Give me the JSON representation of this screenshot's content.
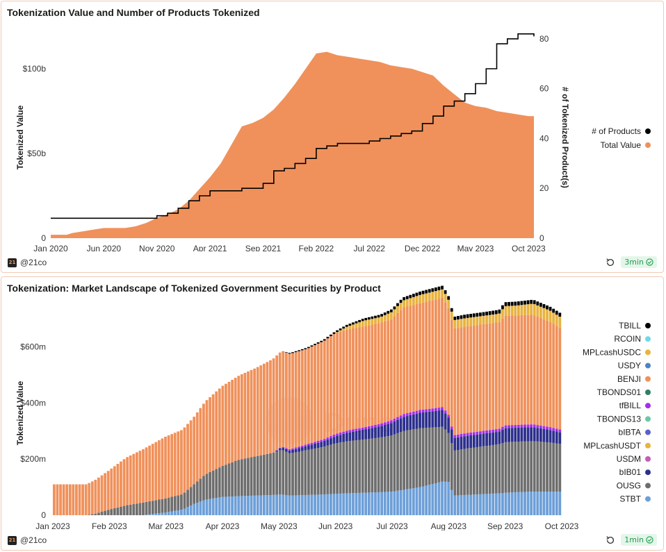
{
  "footer": {
    "author": "@21co",
    "logo_text": "21"
  },
  "panels": [
    {
      "title": "Tokenization Value and Number of Products Tokenized",
      "refresh_badge": "3min"
    },
    {
      "title": "Tokenization: Market Landscape of Tokenized Government Securities by Product",
      "refresh_badge": "1min"
    }
  ],
  "chart_data": [
    {
      "type": "area",
      "title": "Tokenization Value and Number of Products Tokenized",
      "xlabel": "",
      "ylabel": "Tokenized Value",
      "y2label": "# of Tokenized Product(s)",
      "xlim": [
        0,
        45.5
      ],
      "ylim": [
        0,
        125
      ],
      "y2lim": [
        0,
        85
      ],
      "x_ticks": [
        {
          "v": 0,
          "label": "Jan 2020"
        },
        {
          "v": 5,
          "label": "Jun 2020"
        },
        {
          "v": 10,
          "label": "Nov 2020"
        },
        {
          "v": 15,
          "label": "Apr 2021"
        },
        {
          "v": 20,
          "label": "Sep 2021"
        },
        {
          "v": 25,
          "label": "Feb 2022"
        },
        {
          "v": 30,
          "label": "Jul 2022"
        },
        {
          "v": 35,
          "label": "Dec 2022"
        },
        {
          "v": 40,
          "label": "May 2023"
        },
        {
          "v": 45,
          "label": "Oct 2023"
        }
      ],
      "y_ticks": [
        {
          "v": 0,
          "label": "0"
        },
        {
          "v": 50,
          "label": "$50b"
        },
        {
          "v": 100,
          "label": "$100b"
        }
      ],
      "y2_ticks": [
        {
          "v": 0,
          "label": "0"
        },
        {
          "v": 20,
          "label": "20"
        },
        {
          "v": 40,
          "label": "40"
        },
        {
          "v": 60,
          "label": "60"
        },
        {
          "v": 80,
          "label": "80"
        }
      ],
      "legend": [
        {
          "label": "# of Products",
          "color": "#000000"
        },
        {
          "label": "Total Value",
          "color": "#f0915b"
        }
      ],
      "legend_position": "right",
      "series": [
        {
          "name": "Total Value",
          "axis": "left",
          "color": "#f0915b",
          "x": [
            0,
            1,
            1.5,
            2,
            3,
            4,
            5,
            6,
            7,
            8,
            9,
            10,
            11,
            12,
            13,
            14,
            15,
            16,
            17,
            18,
            19,
            20,
            21,
            22,
            23,
            24,
            25,
            26,
            27,
            28,
            29,
            30,
            31,
            32,
            33,
            34,
            35,
            36,
            37,
            38,
            39,
            40,
            41,
            42,
            43,
            44,
            45,
            45.5
          ],
          "values": [
            2,
            2,
            2,
            3,
            4,
            5,
            6,
            6,
            6,
            7,
            9,
            12,
            14,
            17,
            22,
            29,
            36,
            44,
            55,
            66,
            68,
            71,
            76,
            83,
            91,
            100,
            109,
            110,
            108,
            107,
            106,
            105,
            104,
            102,
            101,
            100,
            98,
            96,
            90,
            85,
            80,
            78,
            77,
            75,
            74,
            73,
            72,
            72
          ]
        },
        {
          "name": "# of Products",
          "axis": "right",
          "color": "#000000",
          "x": [
            0,
            9,
            10,
            11,
            12,
            13,
            14,
            15,
            16,
            17,
            18,
            19,
            20,
            21,
            22,
            23,
            24,
            25,
            26,
            27,
            28,
            29,
            30,
            31,
            32,
            33,
            34,
            35,
            36,
            37,
            38,
            39,
            40,
            41,
            42,
            43,
            44,
            45,
            45.5
          ],
          "values": [
            8,
            8,
            9,
            10,
            12,
            15,
            17,
            19,
            19,
            19,
            20,
            20,
            22,
            27,
            28,
            30,
            32,
            36,
            37,
            38,
            38,
            38,
            39,
            40,
            41,
            42,
            43,
            46,
            49,
            53,
            55,
            58,
            62,
            68,
            78,
            80,
            82,
            82,
            81
          ]
        }
      ]
    },
    {
      "type": "bar",
      "stacked": true,
      "title": "Tokenization: Market Landscape of Tokenized Government Securities by Product",
      "xlabel": "",
      "ylabel": "Tokenized Value",
      "xlim": [
        0,
        9
      ],
      "ylim": [
        0,
        720
      ],
      "x_ticks": [
        {
          "v": 0,
          "label": "Jan 2023"
        },
        {
          "v": 1,
          "label": "Feb 2023"
        },
        {
          "v": 2,
          "label": "Mar 2023"
        },
        {
          "v": 3,
          "label": "Apr 2023"
        },
        {
          "v": 4,
          "label": "May 2023"
        },
        {
          "v": 5,
          "label": "Jun 2023"
        },
        {
          "v": 6,
          "label": "Jul 2023"
        },
        {
          "v": 7,
          "label": "Aug 2023"
        },
        {
          "v": 8,
          "label": "Sep 2023"
        },
        {
          "v": 9,
          "label": "Oct 2023"
        }
      ],
      "y_ticks": [
        {
          "v": 0,
          "label": "0"
        },
        {
          "v": 200,
          "label": "$200m"
        },
        {
          "v": 400,
          "label": "$400m"
        },
        {
          "v": 600,
          "label": "$600m"
        }
      ],
      "legend": [
        {
          "label": "TBILL",
          "color": "#000000"
        },
        {
          "label": "RCOIN",
          "color": "#6ddbe6"
        },
        {
          "label": "MPLcashUSDC",
          "color": "#e8b33f"
        },
        {
          "label": "USDY",
          "color": "#4b84c7"
        },
        {
          "label": "BENJI",
          "color": "#f0915b"
        },
        {
          "label": "TBONDS01",
          "color": "#2e7f63"
        },
        {
          "label": "tfBILL",
          "color": "#a32ee8"
        },
        {
          "label": "TBONDS13",
          "color": "#6ec7a7"
        },
        {
          "label": "bIBTA",
          "color": "#5a5fc9"
        },
        {
          "label": "MPLcashUSDT",
          "color": "#e8b33f"
        },
        {
          "label": "USDM",
          "color": "#c35db5"
        },
        {
          "label": "bIB01",
          "color": "#2c2f8c"
        },
        {
          "label": "OUSG",
          "color": "#6e6e6e"
        },
        {
          "label": "STBT",
          "color": "#6d9fd8"
        }
      ],
      "legend_position": "right",
      "stack_order": [
        "STBT",
        "OUSG",
        "bIB01",
        "tfBILL",
        "BENJI",
        "MPLcashUSDC",
        "TBILL"
      ],
      "x": [
        0.0,
        0.6,
        0.75,
        1.0,
        1.3,
        1.6,
        2.0,
        2.3,
        2.5,
        2.7,
        3.0,
        3.3,
        3.6,
        3.9,
        4.05,
        4.2,
        4.5,
        4.8,
        5.0,
        5.2,
        5.5,
        5.8,
        6.0,
        6.2,
        6.5,
        6.9,
        7.0,
        7.1,
        7.3,
        7.6,
        7.9,
        8.0,
        8.2,
        8.5,
        8.8,
        9.0
      ],
      "series": [
        {
          "name": "STBT",
          "values": [
            0,
            0,
            0,
            0,
            0,
            0,
            10,
            20,
            40,
            55,
            65,
            68,
            70,
            72,
            74,
            70,
            72,
            74,
            76,
            78,
            80,
            82,
            84,
            90,
            100,
            120,
            120,
            70,
            72,
            75,
            78,
            80,
            82,
            84,
            84,
            84
          ]
        },
        {
          "name": "OUSG",
          "values": [
            0,
            0,
            5,
            20,
            35,
            45,
            50,
            55,
            70,
            90,
            110,
            130,
            140,
            150,
            160,
            150,
            160,
            170,
            180,
            185,
            190,
            195,
            200,
            210,
            210,
            195,
            175,
            160,
            165,
            170,
            175,
            180,
            180,
            180,
            175,
            170
          ]
        },
        {
          "name": "bIB01",
          "values": [
            0,
            0,
            0,
            0,
            0,
            0,
            0,
            0,
            0,
            0,
            0,
            0,
            0,
            0,
            8,
            10,
            15,
            20,
            25,
            30,
            35,
            40,
            45,
            50,
            55,
            60,
            55,
            45,
            45,
            45,
            45,
            50,
            50,
            50,
            45,
            40
          ]
        },
        {
          "name": "tfBILL",
          "values": [
            0,
            0,
            0,
            0,
            0,
            0,
            0,
            0,
            0,
            0,
            0,
            0,
            0,
            0,
            3,
            5,
            6,
            7,
            8,
            8,
            8,
            9,
            10,
            10,
            10,
            10,
            10,
            10,
            10,
            10,
            10,
            10,
            10,
            10,
            10,
            10
          ]
        },
        {
          "name": "BENJI",
          "values": [
            110,
            110,
            120,
            140,
            170,
            190,
            220,
            230,
            240,
            260,
            285,
            300,
            315,
            335,
            340,
            340,
            340,
            350,
            360,
            360,
            360,
            360,
            360,
            380,
            380,
            390,
            380,
            380,
            380,
            380,
            380,
            390,
            390,
            390,
            375,
            360
          ]
        },
        {
          "name": "MPLcashUSDC",
          "values": [
            0,
            0,
            0,
            0,
            0,
            0,
            0,
            0,
            0,
            0,
            0,
            0,
            0,
            0,
            0,
            0,
            0,
            0,
            0,
            10,
            20,
            20,
            25,
            25,
            30,
            30,
            30,
            30,
            30,
            30,
            30,
            35,
            35,
            40,
            40,
            40
          ]
        },
        {
          "name": "TBILL",
          "values": [
            0,
            0,
            0,
            0,
            0,
            0,
            0,
            0,
            0,
            0,
            0,
            0,
            0,
            0,
            0,
            3,
            4,
            5,
            6,
            7,
            8,
            9,
            10,
            11,
            12,
            13,
            13,
            12,
            13,
            13,
            14,
            14,
            14,
            14,
            14,
            14
          ]
        }
      ]
    }
  ]
}
